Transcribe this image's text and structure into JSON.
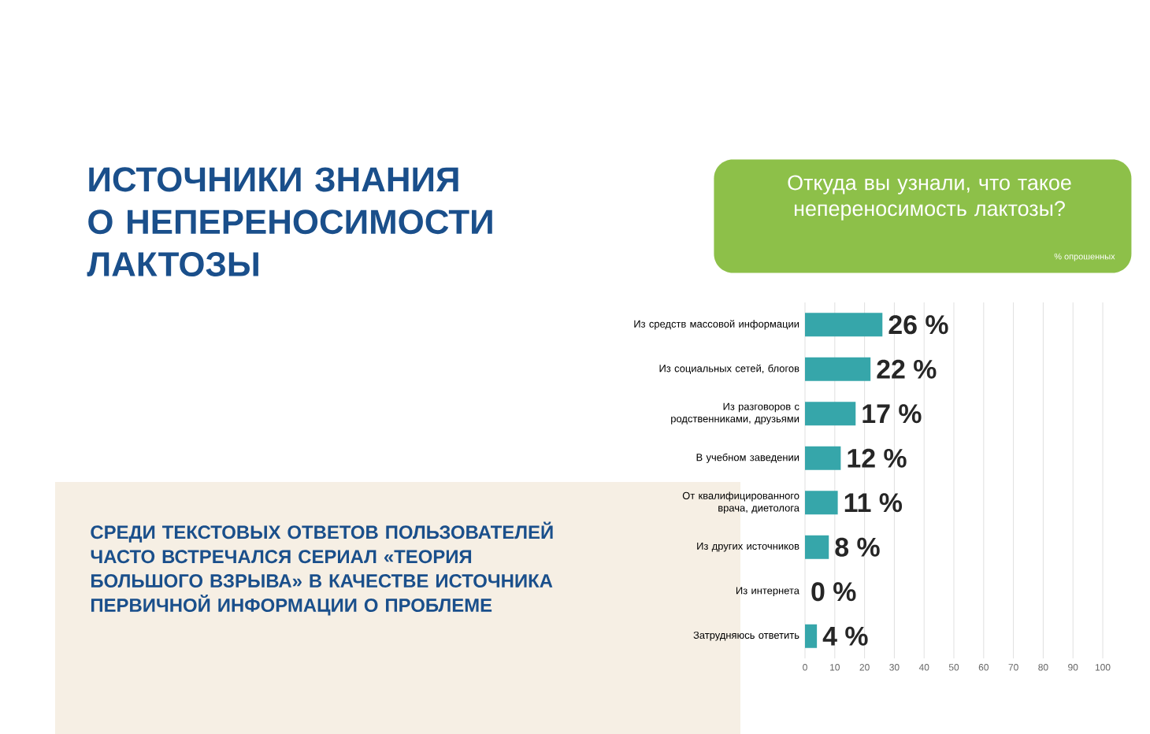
{
  "chart_data": {
    "type": "bar",
    "orientation": "horizontal",
    "title": "ИСТОЧНИКИ ЗНАНИЯ О НЕПЕРЕНОСИМОСТИ ЛАКТОЗЫ",
    "subtitle": "Откуда вы узнали, что такое непереносимость лактозы?",
    "annotations": [
      "% опрошенных",
      "СРЕДИ ТЕКСТОВЫХ ОТВЕТОВ ПОЛЬЗОВАТЕЛЕЙ ЧАСТО ВСТРЕЧАЛСЯ СЕРИАЛ «ТЕОРИЯ БОЛЬШОГО ВЗРЫВА» В КАЧЕСТВЕ ИСТОЧНИКА ПЕРВИЧНОЙ ИНФОРМАЦИИ О ПРОБЛЕМЕ"
    ],
    "categories": [
      "Из средств массовой информации",
      "Из социальных сетей, блогов",
      "Из разговоров с родственниками, друзьями",
      "В учебном заведении",
      "От квалифицированного врача, диетолога",
      "Из других источников",
      "Из интернета",
      "Затрудняюсь ответить"
    ],
    "values": [
      26,
      22,
      17,
      12,
      11,
      8,
      0,
      4
    ],
    "value_labels": [
      "26 %",
      "22 %",
      "17 %",
      "12 %",
      "11 %",
      "8 %",
      "0 %",
      "4 %"
    ],
    "color": "#36a6aa",
    "xlim": [
      0,
      100
    ],
    "xticks": [
      0,
      10,
      20,
      30,
      40,
      50,
      60,
      70,
      80,
      90,
      100
    ],
    "grid": "x"
  }
}
